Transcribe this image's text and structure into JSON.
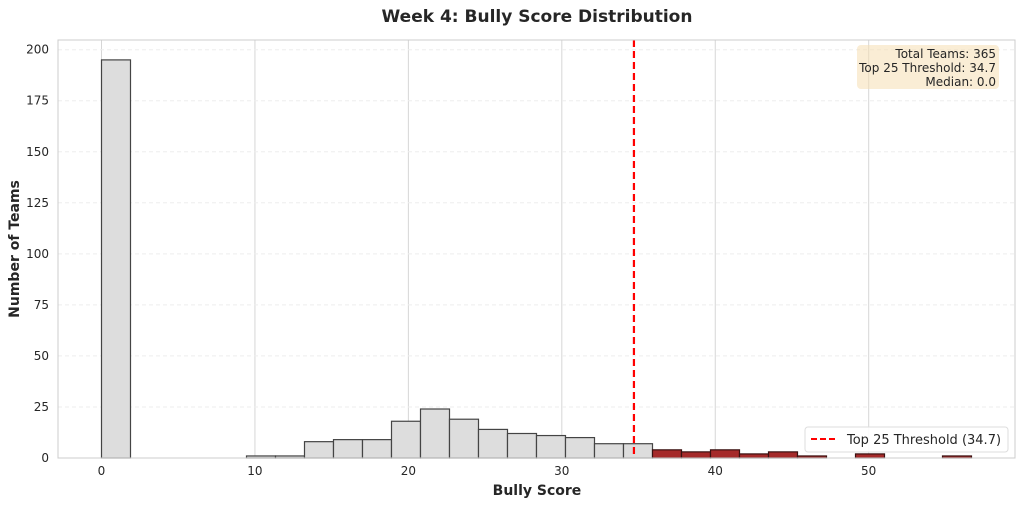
{
  "chart_data": {
    "type": "bar",
    "title": "Week 4: Bully Score Distribution",
    "xlabel": "Bully Score",
    "ylabel": "Number of Teams",
    "xlim": [
      -2.835,
      59.535
    ],
    "ylim": [
      0,
      204.75
    ],
    "xticks": [
      0,
      10,
      20,
      30,
      40,
      50
    ],
    "yticks": [
      0,
      25,
      50,
      75,
      100,
      125,
      150,
      175,
      200
    ],
    "grid": true,
    "bin_width": 1.89,
    "bin_start": 0,
    "counts": [
      195,
      0,
      0,
      0,
      0,
      1,
      1,
      8,
      9,
      9,
      18,
      24,
      19,
      14,
      12,
      11,
      10,
      7,
      7,
      4,
      3,
      4,
      2,
      3,
      1,
      0,
      2,
      0,
      0,
      1
    ],
    "highlight_from": 35.9,
    "colors": {
      "normal": "#dddddd",
      "highlight": "#a52a2a",
      "threshold": "#ff0000",
      "box": "#f5deb3"
    },
    "threshold": {
      "value": 34.7,
      "label": "Top 25 Threshold (34.7)"
    },
    "legend_position": "lower-right",
    "stats_box": {
      "position": "top-right",
      "lines": [
        "Total Teams: 365",
        "Top 25 Threshold: 34.7",
        "Median: 0.0"
      ]
    }
  }
}
